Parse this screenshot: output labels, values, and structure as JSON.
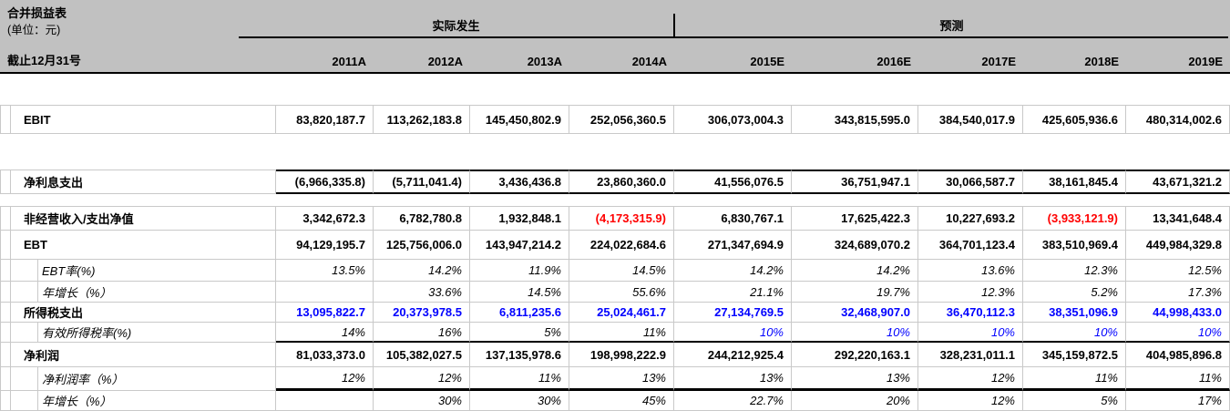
{
  "meta": {
    "title": "合并损益表",
    "unit": "(单位：元)",
    "date_label": "截止12月31号"
  },
  "groups": {
    "actual": "实际发生",
    "forecast": "预测"
  },
  "years": [
    "2011A",
    "2012A",
    "2013A",
    "2014A",
    "2015E",
    "2016E",
    "2017E",
    "2018E",
    "2019E"
  ],
  "colors": {
    "negative_red": "#FF0000",
    "input_blue": "#0000FF",
    "header_bg": "#C1C1C1"
  },
  "table": {
    "rows": [
      {
        "id": "ebit",
        "label": "EBIT",
        "kind": "figure",
        "indent": false,
        "values": [
          "83,820,187.7",
          "113,262,183.8",
          "145,450,802.9",
          "252,056,360.5",
          "306,073,004.3",
          "343,815,595.0",
          "384,540,017.9",
          "425,605,936.6",
          "480,314,002.6"
        ]
      },
      {
        "id": "net-interest-expense",
        "label": "净利息支出",
        "kind": "figure",
        "indent": false,
        "values": [
          "(6,966,335.8)",
          "(5,711,041.4)",
          "3,436,436.8",
          "23,860,360.0",
          "41,556,076.5",
          "36,751,947.1",
          "30,066,587.7",
          "38,161,845.4",
          "43,671,321.2"
        ]
      },
      {
        "id": "non-operating-net",
        "label": "非经营收入/支出净值",
        "kind": "figure",
        "indent": false,
        "values": [
          "3,342,672.3",
          "6,782,780.8",
          "1,932,848.1",
          "(4,173,315.9)",
          "6,830,767.1",
          "17,625,422.3",
          "10,227,693.2",
          "(3,933,121.9)",
          "13,341,648.4"
        ],
        "value_colors": [
          "k",
          "k",
          "k",
          "r",
          "k",
          "k",
          "k",
          "r",
          "k"
        ]
      },
      {
        "id": "ebt",
        "label": "EBT",
        "kind": "figure",
        "indent": false,
        "values": [
          "94,129,195.7",
          "125,756,006.0",
          "143,947,214.2",
          "224,022,684.6",
          "271,347,694.9",
          "324,689,070.2",
          "364,701,123.4",
          "383,510,969.4",
          "449,984,329.8"
        ]
      },
      {
        "id": "ebt-margin",
        "label": "EBT率(%)",
        "kind": "ratio",
        "indent": true,
        "values": [
          "13.5%",
          "14.2%",
          "11.9%",
          "14.5%",
          "14.2%",
          "14.2%",
          "13.6%",
          "12.3%",
          "12.5%"
        ]
      },
      {
        "id": "ebt-yoy-growth",
        "label": "年增长（%）",
        "kind": "ratio",
        "indent": true,
        "values": [
          "",
          "33.6%",
          "14.5%",
          "55.6%",
          "21.1%",
          "19.7%",
          "12.3%",
          "5.2%",
          "17.3%"
        ]
      },
      {
        "id": "income-tax-expense",
        "label": "所得税支出",
        "kind": "figure",
        "indent": false,
        "values": [
          "13,095,822.7",
          "20,373,978.5",
          "6,811,235.6",
          "25,024,461.7",
          "27,134,769.5",
          "32,468,907.0",
          "36,470,112.3",
          "38,351,096.9",
          "44,998,433.0"
        ],
        "value_colors": [
          "b",
          "b",
          "b",
          "b",
          "b",
          "b",
          "b",
          "b",
          "b"
        ]
      },
      {
        "id": "effective-tax-rate",
        "label": "有效所得税率(%)",
        "kind": "ratio",
        "indent": true,
        "values": [
          "14%",
          "16%",
          "5%",
          "11%",
          "10%",
          "10%",
          "10%",
          "10%",
          "10%"
        ],
        "value_colors": [
          "k",
          "k",
          "k",
          "k",
          "b",
          "b",
          "b",
          "b",
          "b"
        ]
      },
      {
        "id": "net-profit",
        "label": "净利润",
        "kind": "figure",
        "indent": false,
        "values": [
          "81,033,373.0",
          "105,382,027.5",
          "137,135,978.6",
          "198,998,222.9",
          "244,212,925.4",
          "292,220,163.1",
          "328,231,011.1",
          "345,159,872.5",
          "404,985,896.8"
        ]
      },
      {
        "id": "net-profit-margin",
        "label": "净利润率（%）",
        "kind": "ratio",
        "indent": true,
        "values": [
          "12%",
          "12%",
          "11%",
          "13%",
          "13%",
          "13%",
          "12%",
          "11%",
          "11%"
        ]
      },
      {
        "id": "net-profit-yoy-growth",
        "label": "年增长（%）",
        "kind": "ratio",
        "indent": true,
        "values": [
          "",
          "30%",
          "30%",
          "45%",
          "22.7%",
          "20%",
          "12%",
          "5%",
          "17%"
        ]
      }
    ]
  }
}
